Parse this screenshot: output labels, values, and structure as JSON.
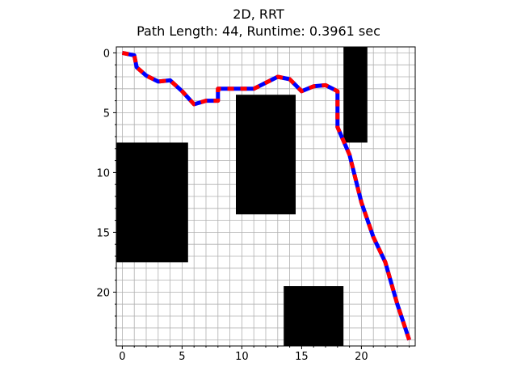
{
  "chart_data": {
    "type": "line",
    "title": "2D, RRT",
    "subtitle": "Path Length: 44, Runtime: 0.3961 sec",
    "xlabel": "",
    "ylabel": "",
    "xlim": [
      -0.5,
      24.5
    ],
    "ylim": [
      24.5,
      -0.5
    ],
    "y_inverted": true,
    "grid": true,
    "grid_minor_step": 1,
    "x_ticks": [
      0,
      5,
      10,
      15,
      20
    ],
    "y_ticks": [
      0,
      5,
      10,
      15,
      20
    ],
    "obstacles": [
      {
        "x0": 18.5,
        "x1": 20.5,
        "y0": -0.5,
        "y1": 7.5
      },
      {
        "x0": 9.5,
        "x1": 14.5,
        "y0": 3.5,
        "y1": 13.5
      },
      {
        "x0": -0.5,
        "x1": 5.5,
        "y0": 7.5,
        "y1": 17.5
      },
      {
        "x0": 13.5,
        "x1": 18.5,
        "y0": 19.5,
        "y1": 24.5
      }
    ],
    "path": {
      "x": [
        0,
        1,
        1.2,
        2,
        3,
        4,
        5,
        6,
        7,
        8,
        8,
        9,
        10,
        11,
        12,
        13,
        14,
        15,
        16,
        17,
        18,
        18,
        19,
        20,
        21,
        22,
        23,
        24
      ],
      "y": [
        0,
        0.2,
        1.2,
        1.9,
        2.4,
        2.3,
        3.2,
        4.3,
        4.0,
        4.0,
        3.0,
        3.0,
        3.0,
        3.0,
        2.5,
        2.0,
        2.2,
        3.2,
        2.8,
        2.7,
        3.2,
        6.2,
        8.5,
        12.5,
        15.4,
        17.5,
        21.0,
        24.0
      ],
      "colors": [
        "#0000ff",
        "#ff0000"
      ],
      "dash_length": 8
    },
    "colors": {
      "obstacle": "#000000",
      "grid": "#b0b0b0",
      "path_a": "#0000ff",
      "path_b": "#ff0000"
    }
  }
}
